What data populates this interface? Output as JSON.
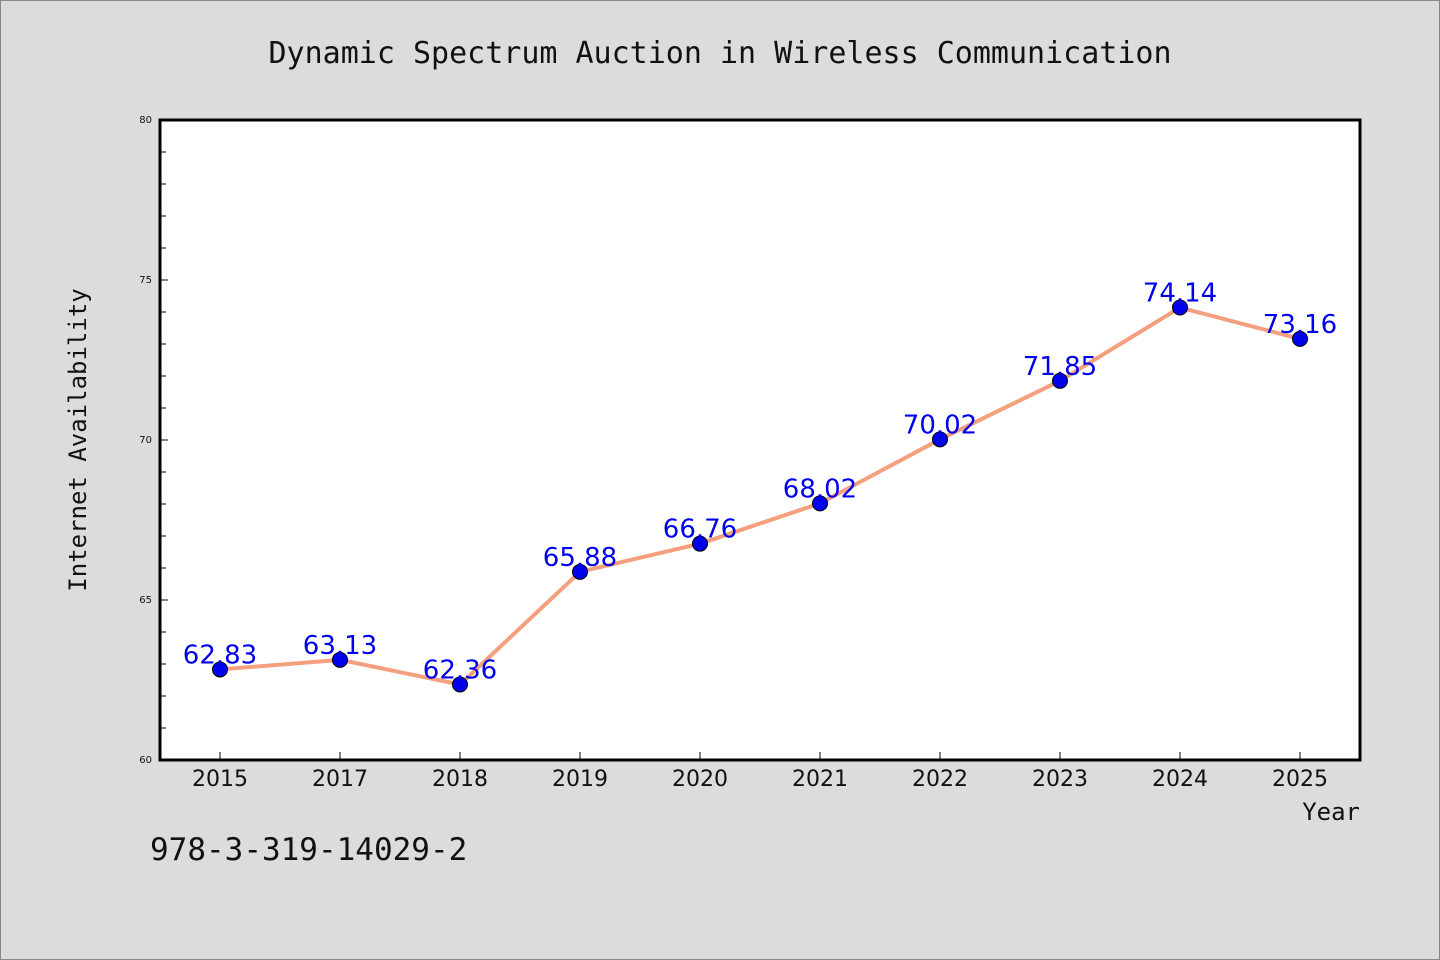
{
  "chart_data": {
    "type": "line",
    "title": "Dynamic Spectrum Auction in Wireless Communication",
    "xlabel": "Year",
    "ylabel": "Internet Availability",
    "categories": [
      "2015",
      "2017",
      "2018",
      "2019",
      "2020",
      "2021",
      "2022",
      "2023",
      "2024",
      "2025"
    ],
    "series": [
      {
        "values": [
          62.83,
          63.13,
          62.36,
          65.88,
          66.76,
          68.02,
          70.02,
          71.85,
          74.14,
          73.16
        ]
      }
    ],
    "data_labels": [
      "62.83",
      "63.13",
      "62.36",
      "65.88",
      "66.76",
      "68.02",
      "70.02",
      "71.85",
      "74.14",
      "73.16"
    ],
    "ylim": [
      60,
      80
    ],
    "yticks": [
      "60",
      "65",
      "70",
      "75",
      "80"
    ],
    "grid": false,
    "line_color": "#f4a07f",
    "marker_color": "#0000ee",
    "label_color": "#0000ee"
  },
  "footer": {
    "isbn": "978-3-319-14029-2"
  }
}
